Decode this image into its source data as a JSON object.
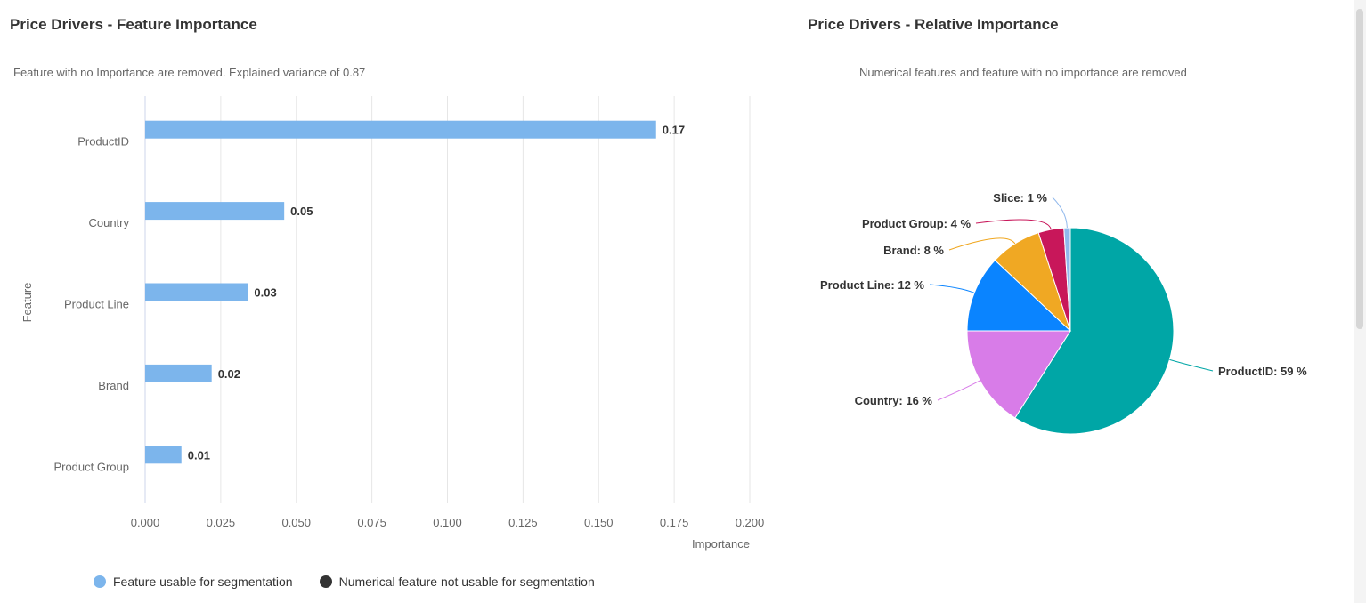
{
  "left": {
    "title": "Price Drivers - Feature Importance",
    "subtitle": "Feature with no Importance are removed. Explained variance of 0.87"
  },
  "right": {
    "title": "Price Drivers - Relative Importance",
    "subtitle": "Numerical features and feature with no importance are removed"
  },
  "legend": [
    {
      "label": "Feature usable for segmentation",
      "color": "#7cb5ec"
    },
    {
      "label": "Numerical feature not usable for segmentation",
      "color": "#333333"
    }
  ],
  "chart_data": [
    {
      "type": "bar",
      "orientation": "horizontal",
      "categories": [
        "ProductID",
        "Country",
        "Product Line",
        "Brand",
        "Product Group"
      ],
      "values": [
        0.169,
        0.046,
        0.034,
        0.022,
        0.012
      ],
      "data_labels": [
        "0.17",
        "0.05",
        "0.03",
        "0.02",
        "0.01"
      ],
      "xlabel": "Importance",
      "ylabel": "Feature",
      "xlim": [
        0,
        0.2
      ],
      "xticks": [
        "0.000",
        "0.025",
        "0.050",
        "0.075",
        "0.100",
        "0.125",
        "0.150",
        "0.175",
        "0.200"
      ],
      "grid": true,
      "color": "#7cb5ec"
    },
    {
      "type": "pie",
      "labels": [
        "ProductID",
        "Country",
        "Product Line",
        "Brand",
        "Product Group",
        "Slice"
      ],
      "values": [
        59,
        16,
        12,
        8,
        4,
        1
      ],
      "data_labels": [
        "ProductID: 59 %",
        "Country: 16 %",
        "Product Line: 12 %",
        "Brand: 8 %",
        "Product Group: 4 %",
        "Slice: 1 %"
      ],
      "colors": [
        "#00a6a6",
        "#d87ce8",
        "#0a84ff",
        "#f0a823",
        "#c8175a",
        "#90b8ec"
      ]
    }
  ]
}
